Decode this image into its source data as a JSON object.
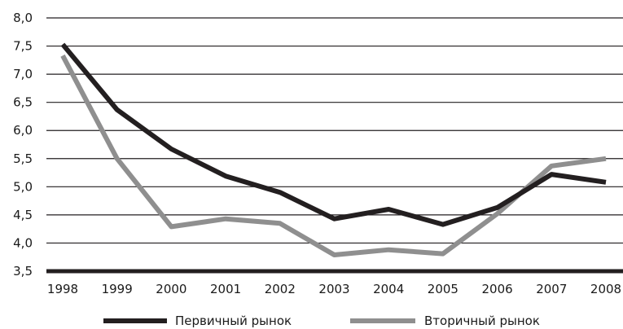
{
  "chart_data": {
    "type": "line",
    "categories": [
      "1998",
      "1999",
      "2000",
      "2001",
      "2002",
      "2003",
      "2004",
      "2005",
      "2006",
      "2007",
      "2008"
    ],
    "series": [
      {
        "name": "Первичный рынок",
        "color": "#231f20",
        "values": [
          7.53,
          6.37,
          5.67,
          5.19,
          4.9,
          4.43,
          4.6,
          4.33,
          4.63,
          5.22,
          5.08
        ]
      },
      {
        "name": "Вторичный рынок",
        "color": "#8f8f8f",
        "values": [
          7.33,
          5.5,
          4.29,
          4.43,
          4.35,
          3.79,
          3.88,
          3.81,
          4.52,
          5.37,
          5.5
        ]
      }
    ],
    "yticks": [
      "3,5",
      "4,0",
      "4,5",
      "5,0",
      "5,5",
      "6,0",
      "6,5",
      "7,0",
      "7,5",
      "8,0"
    ],
    "ylim": [
      3.5,
      8.0
    ],
    "title": "",
    "xlabel": "",
    "ylabel": "",
    "grid": true,
    "legend": "bottom"
  }
}
